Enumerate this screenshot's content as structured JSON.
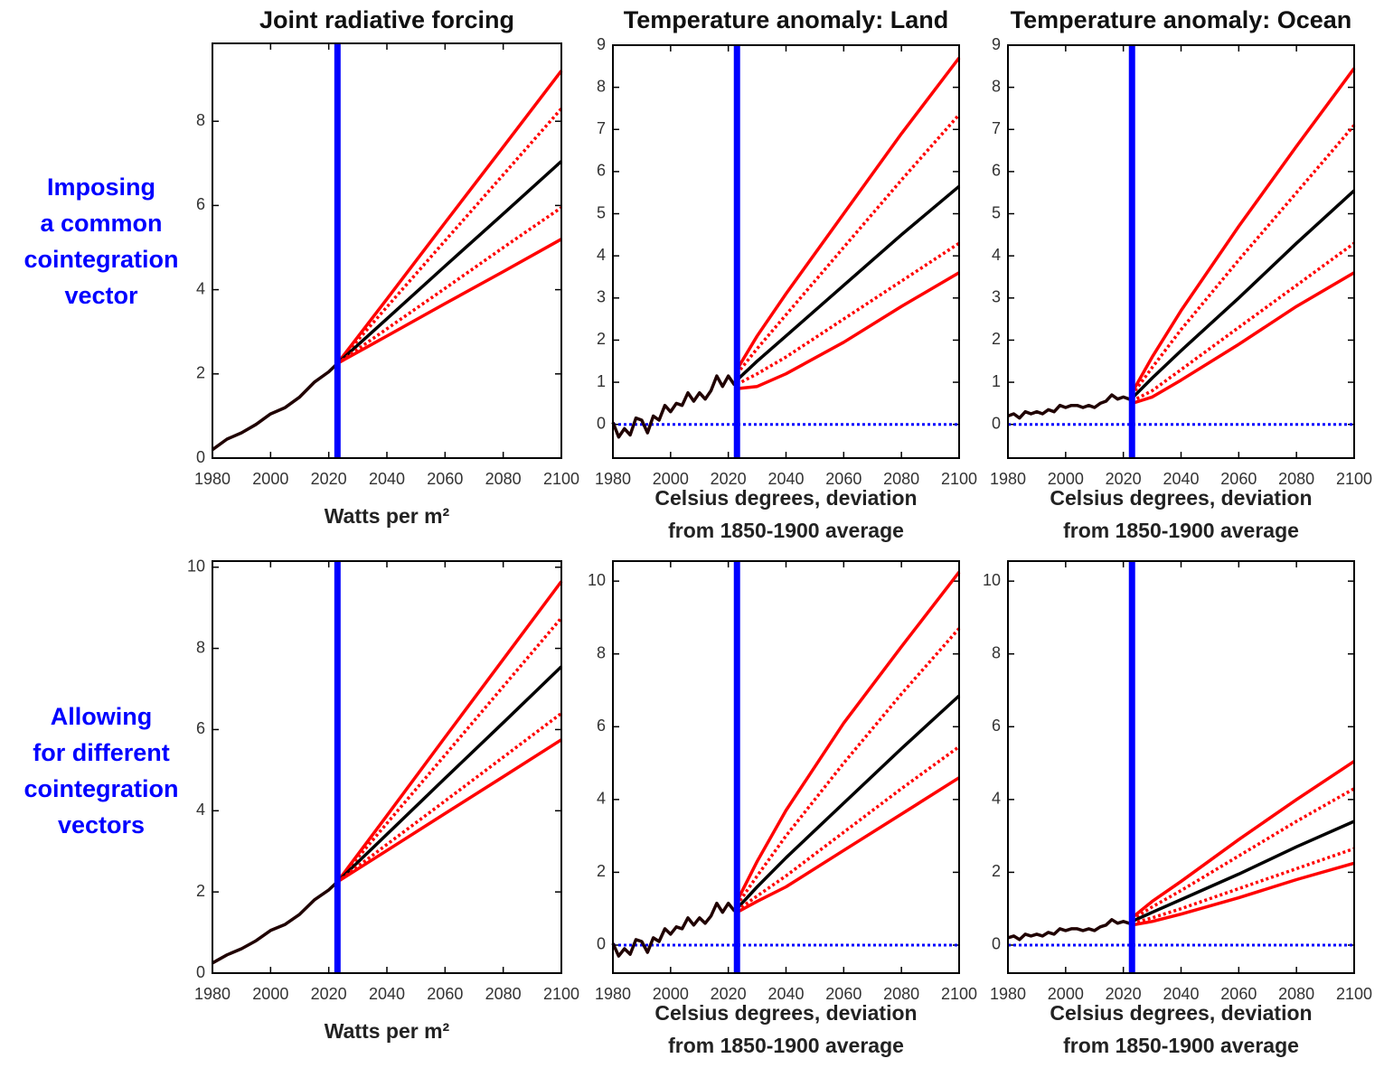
{
  "row_labels": [
    [
      "Imposing",
      "a common",
      "cointegration",
      "vector"
    ],
    [
      "Allowing",
      "for different",
      "cointegration",
      "vectors"
    ]
  ],
  "chart_data": [
    {
      "type": "line",
      "title": "Joint radiative forcing",
      "xlabel": [
        "Watts per m²"
      ],
      "xlim": [
        1980,
        2100
      ],
      "xticks": [
        1980,
        2000,
        2020,
        2040,
        2060,
        2080,
        2100
      ],
      "ylim": [
        0,
        9.85
      ],
      "yticks": [
        0,
        2,
        4,
        6,
        8
      ],
      "vline": 2023,
      "vline_color": "#0000ff",
      "series": [
        {
          "color": "#200000",
          "style": "solid",
          "x": [
            1980,
            1985,
            1990,
            1995,
            2000,
            2005,
            2010,
            2015,
            2020,
            2023
          ],
          "values": [
            0.2,
            0.45,
            0.6,
            0.8,
            1.05,
            1.2,
            1.45,
            1.8,
            2.05,
            2.25
          ]
        },
        {
          "color": "#ff0000",
          "style": "solid",
          "x": [
            2023,
            2040,
            2060,
            2080,
            2100
          ],
          "values": [
            2.25,
            3.78,
            5.59,
            7.39,
            9.2
          ]
        },
        {
          "color": "#ff0000",
          "style": "dotted",
          "x": [
            2023,
            2040,
            2060,
            2080,
            2100
          ],
          "values": [
            2.25,
            3.59,
            5.16,
            6.73,
            8.3
          ]
        },
        {
          "color": "#000000",
          "style": "solid",
          "x": [
            2023,
            2040,
            2060,
            2080,
            2100
          ],
          "values": [
            2.25,
            3.31,
            4.56,
            5.8,
            7.05
          ]
        },
        {
          "color": "#ff0000",
          "style": "dotted",
          "x": [
            2023,
            2040,
            2060,
            2080,
            2100
          ],
          "values": [
            2.25,
            3.07,
            4.03,
            5.0,
            5.95
          ]
        },
        {
          "color": "#ff0000",
          "style": "solid",
          "x": [
            2023,
            2040,
            2060,
            2080,
            2100
          ],
          "values": [
            2.25,
            2.9,
            3.67,
            4.43,
            5.2
          ]
        }
      ]
    },
    {
      "type": "line",
      "title": "Temperature anomaly: Land",
      "xlabel": [
        "Celsius degrees, deviation",
        "from 1850-1900 average"
      ],
      "xlim": [
        1980,
        2100
      ],
      "xticks": [
        1980,
        2000,
        2020,
        2040,
        2060,
        2080,
        2100
      ],
      "ylim": [
        -0.8,
        9
      ],
      "yticks": [
        0,
        1,
        2,
        3,
        4,
        5,
        6,
        7,
        8,
        9
      ],
      "vline": 2023,
      "vline_color": "#0000ff",
      "hline": 0,
      "hline_color": "#0000ff",
      "series": [
        {
          "color": "#200000",
          "style": "solid",
          "x": [
            1980,
            1982,
            1984,
            1986,
            1988,
            1990,
            1992,
            1994,
            1996,
            1998,
            2000,
            2002,
            2004,
            2006,
            2008,
            2010,
            2012,
            2014,
            2016,
            2018,
            2020,
            2022,
            2023
          ],
          "values": [
            0.05,
            -0.3,
            -0.1,
            -0.25,
            0.15,
            0.1,
            -0.2,
            0.2,
            0.1,
            0.45,
            0.3,
            0.5,
            0.45,
            0.75,
            0.55,
            0.75,
            0.6,
            0.8,
            1.15,
            0.9,
            1.15,
            0.95,
            1.05
          ]
        },
        {
          "color": "#ff0000",
          "style": "solid",
          "x": [
            2023,
            2030,
            2040,
            2060,
            2080,
            2100
          ],
          "values": [
            1.3,
            2.1,
            3.1,
            5.0,
            6.9,
            8.7
          ]
        },
        {
          "color": "#ff0000",
          "style": "dotted",
          "x": [
            2023,
            2030,
            2040,
            2060,
            2080,
            2100
          ],
          "values": [
            1.2,
            1.8,
            2.6,
            4.2,
            5.8,
            7.35
          ]
        },
        {
          "color": "#000000",
          "style": "solid",
          "x": [
            2023,
            2030,
            2040,
            2060,
            2080,
            2100
          ],
          "values": [
            1.05,
            1.5,
            2.1,
            3.3,
            4.5,
            5.65
          ]
        },
        {
          "color": "#ff0000",
          "style": "dotted",
          "x": [
            2023,
            2030,
            2040,
            2060,
            2080,
            2100
          ],
          "values": [
            0.95,
            1.2,
            1.6,
            2.5,
            3.4,
            4.3
          ]
        },
        {
          "color": "#ff0000",
          "style": "solid",
          "x": [
            2023,
            2030,
            2040,
            2060,
            2080,
            2100
          ],
          "values": [
            0.85,
            0.9,
            1.2,
            1.95,
            2.8,
            3.6
          ]
        }
      ]
    },
    {
      "type": "line",
      "title": "Temperature anomaly: Ocean",
      "xlabel": [
        "Celsius degrees, deviation",
        "from 1850-1900 average"
      ],
      "xlim": [
        1980,
        2100
      ],
      "xticks": [
        1980,
        2000,
        2020,
        2040,
        2060,
        2080,
        2100
      ],
      "ylim": [
        -0.8,
        9
      ],
      "yticks": [
        0,
        1,
        2,
        3,
        4,
        5,
        6,
        7,
        8,
        9
      ],
      "vline": 2023,
      "vline_color": "#0000ff",
      "hline": 0,
      "hline_color": "#0000ff",
      "series": [
        {
          "color": "#200000",
          "style": "solid",
          "x": [
            1980,
            1982,
            1984,
            1986,
            1988,
            1990,
            1992,
            1994,
            1996,
            1998,
            2000,
            2002,
            2004,
            2006,
            2008,
            2010,
            2012,
            2014,
            2016,
            2018,
            2020,
            2022,
            2023
          ],
          "values": [
            0.2,
            0.25,
            0.15,
            0.3,
            0.25,
            0.3,
            0.25,
            0.35,
            0.3,
            0.45,
            0.4,
            0.45,
            0.45,
            0.4,
            0.45,
            0.4,
            0.5,
            0.55,
            0.7,
            0.6,
            0.65,
            0.6,
            0.62
          ]
        },
        {
          "color": "#ff0000",
          "style": "solid",
          "x": [
            2023,
            2030,
            2040,
            2060,
            2080,
            2100
          ],
          "values": [
            0.75,
            1.6,
            2.7,
            4.7,
            6.6,
            8.45
          ]
        },
        {
          "color": "#ff0000",
          "style": "dotted",
          "x": [
            2023,
            2030,
            2040,
            2060,
            2080,
            2100
          ],
          "values": [
            0.7,
            1.35,
            2.25,
            3.9,
            5.5,
            7.1
          ]
        },
        {
          "color": "#000000",
          "style": "solid",
          "x": [
            2023,
            2030,
            2040,
            2060,
            2080,
            2100
          ],
          "values": [
            0.62,
            1.1,
            1.75,
            3.0,
            4.3,
            5.55
          ]
        },
        {
          "color": "#ff0000",
          "style": "dotted",
          "x": [
            2023,
            2030,
            2040,
            2060,
            2080,
            2100
          ],
          "values": [
            0.55,
            0.8,
            1.3,
            2.3,
            3.3,
            4.3
          ]
        },
        {
          "color": "#ff0000",
          "style": "solid",
          "x": [
            2023,
            2030,
            2040,
            2060,
            2080,
            2100
          ],
          "values": [
            0.5,
            0.65,
            1.05,
            1.9,
            2.8,
            3.6
          ]
        }
      ]
    },
    {
      "type": "line",
      "xlabel": [
        "Watts per m²"
      ],
      "xlim": [
        1980,
        2100
      ],
      "xticks": [
        1980,
        2000,
        2020,
        2040,
        2060,
        2080,
        2100
      ],
      "ylim": [
        0,
        10.15
      ],
      "yticks": [
        0,
        2,
        4,
        6,
        8,
        10
      ],
      "vline": 2023,
      "vline_color": "#0000ff",
      "series": [
        {
          "color": "#200000",
          "style": "solid",
          "x": [
            1980,
            1985,
            1990,
            1995,
            2000,
            2005,
            2010,
            2015,
            2020,
            2023
          ],
          "values": [
            0.25,
            0.45,
            0.6,
            0.8,
            1.05,
            1.2,
            1.45,
            1.8,
            2.05,
            2.25
          ]
        },
        {
          "color": "#ff0000",
          "style": "solid",
          "x": [
            2023,
            2040,
            2060,
            2080,
            2100
          ],
          "values": [
            2.25,
            3.88,
            5.81,
            7.73,
            9.65
          ]
        },
        {
          "color": "#ff0000",
          "style": "dotted",
          "x": [
            2023,
            2040,
            2060,
            2080,
            2100
          ],
          "values": [
            2.25,
            3.69,
            5.37,
            7.06,
            8.75
          ]
        },
        {
          "color": "#000000",
          "style": "solid",
          "x": [
            2023,
            2040,
            2060,
            2080,
            2100
          ],
          "values": [
            2.25,
            3.42,
            4.8,
            6.17,
            7.55
          ]
        },
        {
          "color": "#ff0000",
          "style": "dotted",
          "x": [
            2023,
            2040,
            2060,
            2080,
            2100
          ],
          "values": [
            2.25,
            3.17,
            4.24,
            5.32,
            6.4
          ]
        },
        {
          "color": "#ff0000",
          "style": "solid",
          "x": [
            2023,
            2040,
            2060,
            2080,
            2100
          ],
          "values": [
            2.25,
            3.02,
            3.93,
            4.84,
            5.75
          ]
        }
      ]
    },
    {
      "type": "line",
      "xlabel": [
        "Celsius degrees, deviation",
        "from 1850-1900 average"
      ],
      "xlim": [
        1980,
        2100
      ],
      "xticks": [
        1980,
        2000,
        2020,
        2040,
        2060,
        2080,
        2100
      ],
      "ylim": [
        -0.77,
        10.55
      ],
      "yticks": [
        0,
        2,
        4,
        6,
        8,
        10
      ],
      "vline": 2023,
      "vline_color": "#0000ff",
      "hline": 0,
      "hline_color": "#0000ff",
      "series": [
        {
          "color": "#200000",
          "style": "solid",
          "x": [
            1980,
            1982,
            1984,
            1986,
            1988,
            1990,
            1992,
            1994,
            1996,
            1998,
            2000,
            2002,
            2004,
            2006,
            2008,
            2010,
            2012,
            2014,
            2016,
            2018,
            2020,
            2022,
            2023
          ],
          "values": [
            0.05,
            -0.3,
            -0.1,
            -0.25,
            0.15,
            0.1,
            -0.2,
            0.2,
            0.1,
            0.45,
            0.3,
            0.5,
            0.45,
            0.75,
            0.55,
            0.75,
            0.6,
            0.8,
            1.15,
            0.9,
            1.15,
            0.95,
            1.0
          ]
        },
        {
          "color": "#ff0000",
          "style": "solid",
          "x": [
            2023,
            2030,
            2040,
            2060,
            2080,
            2100
          ],
          "values": [
            1.2,
            2.3,
            3.7,
            6.1,
            8.2,
            10.25
          ]
        },
        {
          "color": "#ff0000",
          "style": "dotted",
          "x": [
            2023,
            2030,
            2040,
            2060,
            2080,
            2100
          ],
          "values": [
            1.1,
            1.9,
            3.0,
            5.0,
            6.9,
            8.7
          ]
        },
        {
          "color": "#000000",
          "style": "solid",
          "x": [
            2023,
            2030,
            2040,
            2060,
            2080,
            2100
          ],
          "values": [
            1.0,
            1.6,
            2.4,
            3.9,
            5.4,
            6.85
          ]
        },
        {
          "color": "#ff0000",
          "style": "dotted",
          "x": [
            2023,
            2030,
            2040,
            2060,
            2080,
            2100
          ],
          "values": [
            0.95,
            1.35,
            1.9,
            3.1,
            4.3,
            5.45
          ]
        },
        {
          "color": "#ff0000",
          "style": "solid",
          "x": [
            2023,
            2030,
            2040,
            2060,
            2080,
            2100
          ],
          "values": [
            0.9,
            1.2,
            1.6,
            2.6,
            3.6,
            4.6
          ]
        }
      ]
    },
    {
      "type": "line",
      "xlabel": [
        "Celsius degrees, deviation",
        "from 1850-1900 average"
      ],
      "xlim": [
        1980,
        2100
      ],
      "xticks": [
        1980,
        2000,
        2020,
        2040,
        2060,
        2080,
        2100
      ],
      "ylim": [
        -0.77,
        10.55
      ],
      "yticks": [
        0,
        2,
        4,
        6,
        8,
        10
      ],
      "vline": 2023,
      "vline_color": "#0000ff",
      "hline": 0,
      "hline_color": "#0000ff",
      "series": [
        {
          "color": "#200000",
          "style": "solid",
          "x": [
            1980,
            1982,
            1984,
            1986,
            1988,
            1990,
            1992,
            1994,
            1996,
            1998,
            2000,
            2002,
            2004,
            2006,
            2008,
            2010,
            2012,
            2014,
            2016,
            2018,
            2020,
            2022,
            2023
          ],
          "values": [
            0.2,
            0.25,
            0.15,
            0.3,
            0.25,
            0.3,
            0.25,
            0.35,
            0.3,
            0.45,
            0.4,
            0.45,
            0.45,
            0.4,
            0.45,
            0.4,
            0.5,
            0.55,
            0.7,
            0.6,
            0.65,
            0.6,
            0.62
          ]
        },
        {
          "color": "#ff0000",
          "style": "solid",
          "x": [
            2023,
            2030,
            2040,
            2060,
            2080,
            2100
          ],
          "values": [
            0.75,
            1.2,
            1.75,
            2.9,
            4.0,
            5.05
          ]
        },
        {
          "color": "#ff0000",
          "style": "dotted",
          "x": [
            2023,
            2030,
            2040,
            2060,
            2080,
            2100
          ],
          "values": [
            0.7,
            1.05,
            1.5,
            2.45,
            3.4,
            4.3
          ]
        },
        {
          "color": "#000000",
          "style": "solid",
          "x": [
            2023,
            2030,
            2040,
            2060,
            2080,
            2100
          ],
          "values": [
            0.65,
            0.9,
            1.25,
            1.95,
            2.7,
            3.4
          ]
        },
        {
          "color": "#ff0000",
          "style": "dotted",
          "x": [
            2023,
            2030,
            2040,
            2060,
            2080,
            2100
          ],
          "values": [
            0.6,
            0.75,
            1.0,
            1.55,
            2.1,
            2.65
          ]
        },
        {
          "color": "#ff0000",
          "style": "solid",
          "x": [
            2023,
            2030,
            2040,
            2060,
            2080,
            2100
          ],
          "values": [
            0.55,
            0.65,
            0.85,
            1.3,
            1.8,
            2.25
          ]
        }
      ]
    }
  ]
}
